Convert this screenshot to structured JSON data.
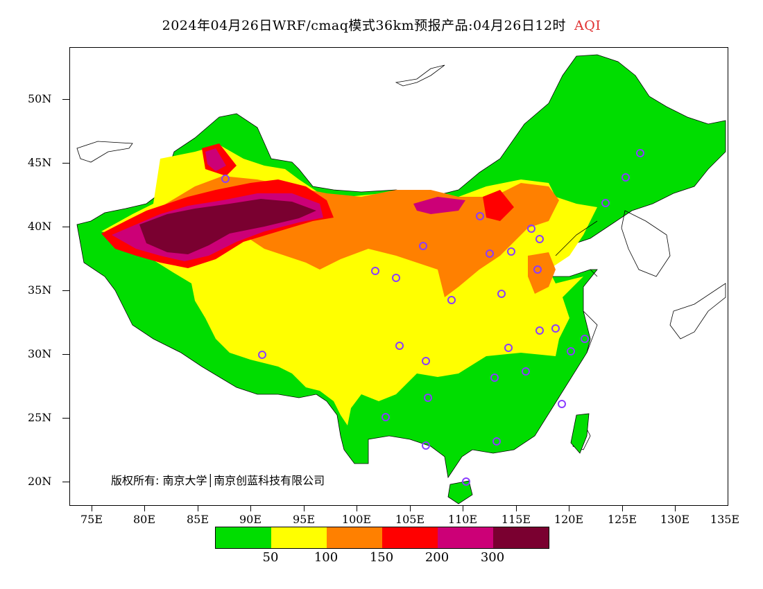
{
  "title": {
    "main": "2024年04月26日WRF/cmaq模式36km预报产品:04月26日12时",
    "variable": "AQI"
  },
  "axes": {
    "lat_labels": [
      "50N",
      "45N",
      "40N",
      "35N",
      "30N",
      "25N",
      "20N"
    ],
    "lon_labels": [
      "75E",
      "80E",
      "85E",
      "90E",
      "95E",
      "100E",
      "105E",
      "110E",
      "115E",
      "120E",
      "125E",
      "130E",
      "135E"
    ]
  },
  "copyright": "版权所有: 南京大学│南京创蓝科技有限公司",
  "legend": {
    "colors": [
      "#00dd00",
      "#ffff00",
      "#ff8000",
      "#ff0000",
      "#cc0077",
      "#7a0030"
    ],
    "labels": [
      "50",
      "100",
      "150",
      "200",
      "300"
    ]
  },
  "colors": {
    "grid_border": "#000000",
    "city_marker": "#8a3cff",
    "title_variable": "#e03030"
  }
}
